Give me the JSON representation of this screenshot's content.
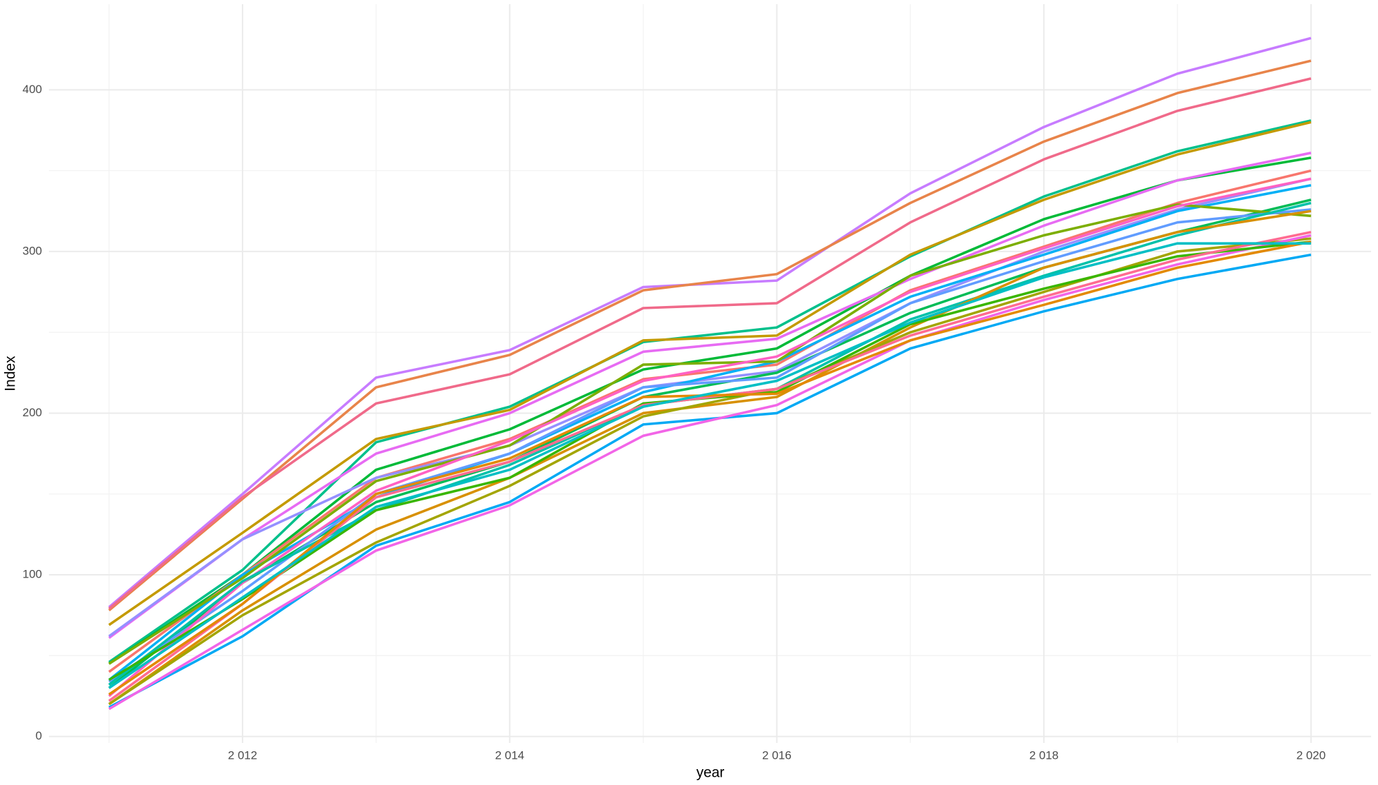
{
  "chart_data": {
    "type": "line",
    "x_label": "year",
    "y_label": "Index",
    "x": [
      2011,
      2012,
      2013,
      2014,
      2015,
      2016,
      2017,
      2018,
      2019,
      2020
    ],
    "xlim": [
      2010.55,
      2020.45
    ],
    "xticks": [
      {
        "value": 2012,
        "label": "2 012"
      },
      {
        "value": 2014,
        "label": "2 014"
      },
      {
        "value": 2016,
        "label": "2 016"
      },
      {
        "value": 2018,
        "label": "2 018"
      },
      {
        "value": 2020,
        "label": "2 020"
      }
    ],
    "x_minor_ticks": [
      2011,
      2013,
      2015,
      2017,
      2019
    ],
    "ylim": [
      -4,
      453
    ],
    "yticks": [
      0,
      100,
      200,
      300,
      400
    ],
    "y_minor_ticks": [
      50,
      150,
      250,
      350
    ],
    "grid": true,
    "series": [
      {
        "color": "#c77cff",
        "values": [
          80,
          150,
          222,
          239,
          278,
          282,
          336,
          377,
          410,
          432
        ]
      },
      {
        "color": "#e8844a",
        "values": [
          78,
          147,
          216,
          236,
          276,
          286,
          330,
          368,
          398,
          418
        ]
      },
      {
        "color": "#f06a8a",
        "values": [
          79,
          148,
          206,
          224,
          265,
          268,
          318,
          357,
          387,
          407
        ]
      },
      {
        "color": "#00c08b",
        "values": [
          46,
          103,
          182,
          204,
          244,
          253,
          297,
          334,
          362,
          381
        ]
      },
      {
        "color": "#c49a00",
        "values": [
          69,
          126,
          184,
          202,
          245,
          248,
          298,
          332,
          360,
          380
        ]
      },
      {
        "color": "#00ba38",
        "values": [
          45,
          100,
          165,
          190,
          227,
          240,
          285,
          320,
          344,
          358
        ]
      },
      {
        "color": "#e76bf3",
        "values": [
          61,
          122,
          175,
          200,
          238,
          246,
          283,
          316,
          344,
          361
        ]
      },
      {
        "color": "#f8766d",
        "values": [
          40,
          100,
          160,
          184,
          221,
          230,
          276,
          303,
          330,
          350
        ]
      },
      {
        "color": "#9590ff",
        "values": [
          62,
          122,
          160,
          180,
          216,
          226,
          268,
          300,
          326,
          345
        ]
      },
      {
        "color": "#00b0f6",
        "values": [
          35,
          100,
          148,
          175,
          213,
          232,
          272,
          298,
          325,
          341
        ]
      },
      {
        "color": "#00bc56",
        "values": [
          30,
          95,
          145,
          170,
          210,
          225,
          262,
          290,
          312,
          332
        ]
      },
      {
        "color": "#7cae00",
        "values": [
          45,
          98,
          158,
          180,
          230,
          232,
          285,
          310,
          329,
          322
        ]
      },
      {
        "color": "#619cff",
        "values": [
          34,
          90,
          150,
          175,
          216,
          222,
          268,
          294,
          318,
          326
        ]
      },
      {
        "color": "#ff61c3",
        "values": [
          25,
          95,
          152,
          183,
          220,
          235,
          275,
          302,
          328,
          345
        ]
      },
      {
        "color": "#00c1aa",
        "values": [
          32,
          96,
          140,
          168,
          205,
          215,
          258,
          285,
          310,
          330
        ]
      },
      {
        "color": "#d89000",
        "values": [
          20,
          78,
          128,
          160,
          200,
          210,
          253,
          290,
          312,
          325
        ]
      },
      {
        "color": "#a3a500",
        "values": [
          20,
          75,
          120,
          155,
          198,
          215,
          250,
          275,
          300,
          308
        ]
      },
      {
        "color": "#00a9f4",
        "values": [
          18,
          62,
          118,
          145,
          193,
          200,
          240,
          263,
          283,
          298
        ]
      },
      {
        "color": "#f265e7",
        "values": [
          17,
          66,
          115,
          143,
          186,
          205,
          245,
          270,
          292,
          310
        ]
      },
      {
        "color": "#39b600",
        "values": [
          35,
          85,
          140,
          160,
          206,
          213,
          255,
          277,
          297,
          306
        ]
      },
      {
        "color": "#ff6c91",
        "values": [
          22,
          82,
          148,
          170,
          205,
          215,
          248,
          272,
          295,
          312
        ]
      },
      {
        "color": "#e38900",
        "values": [
          26,
          82,
          150,
          172,
          210,
          212,
          245,
          267,
          290,
          306
        ]
      },
      {
        "color": "#00bfc4",
        "values": [
          30,
          86,
          142,
          165,
          204,
          220,
          256,
          284,
          305,
          305
        ]
      }
    ]
  }
}
